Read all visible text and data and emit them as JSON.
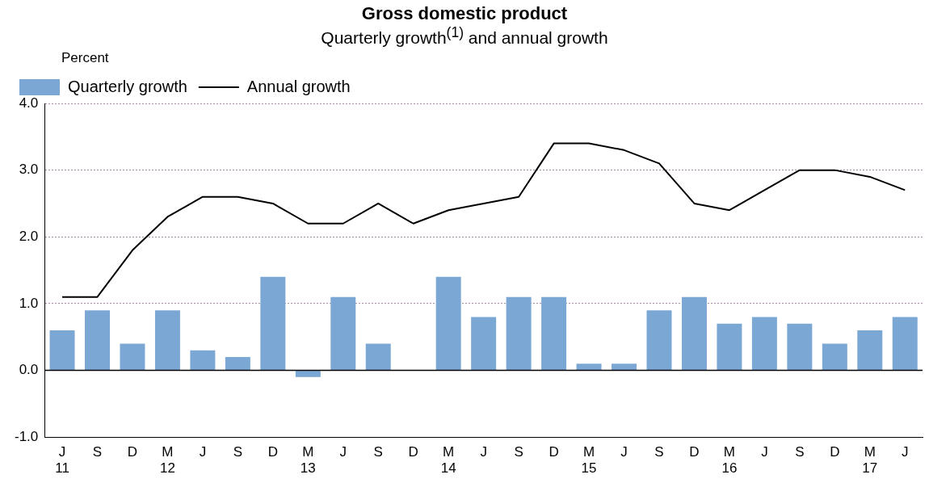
{
  "chart_data": {
    "type": "bar",
    "title": "Gross domestic product",
    "subtitle": "Quarterly growth$^{(1)}$ and annual growth",
    "ylabel": "Percent",
    "categories": [
      "J\n11",
      "S",
      "D",
      "M\n12",
      "J",
      "S",
      "D",
      "M\n13",
      "J",
      "S",
      "D",
      "M\n14",
      "J",
      "S",
      "D",
      "M\n15",
      "J",
      "S",
      "D",
      "M\n16",
      "J",
      "S",
      "D",
      "M\n17",
      "J"
    ],
    "series": [
      {
        "name": "Quarterly growth",
        "color": "#7ba7d4",
        "values": [
          0.6,
          0.9,
          0.4,
          0.9,
          0.3,
          0.2,
          1.4,
          -0.1,
          1.1,
          0.4,
          0.0,
          1.4,
          0.8,
          1.1,
          1.1,
          0.1,
          0.1,
          0.9,
          1.1,
          0.7,
          0.8,
          0.7,
          0.4,
          0.6,
          0.8
        ]
      },
      {
        "name": "Annual growth",
        "type": "line",
        "color": "#000000",
        "values": [
          1.1,
          1.1,
          1.8,
          2.3,
          2.6,
          2.6,
          2.5,
          2.2,
          2.2,
          2.5,
          2.2,
          2.4,
          2.5,
          2.6,
          3.4,
          3.4,
          3.3,
          3.1,
          2.5,
          2.4,
          2.7,
          3.0,
          3.0,
          2.9,
          2.7
        ]
      }
    ],
    "ylim": [
      -1,
      4
    ],
    "yticks": [
      {
        "value": -1,
        "label": "-1.0"
      },
      {
        "value": 0,
        "label": "0.0"
      },
      {
        "value": 1,
        "label": "1.0"
      },
      {
        "value": 2,
        "label": "2.0"
      },
      {
        "value": 3,
        "label": "3.0"
      },
      {
        "value": 4,
        "label": "4.0"
      }
    ],
    "grid": "y",
    "legend": "top left",
    "marker": "none"
  }
}
